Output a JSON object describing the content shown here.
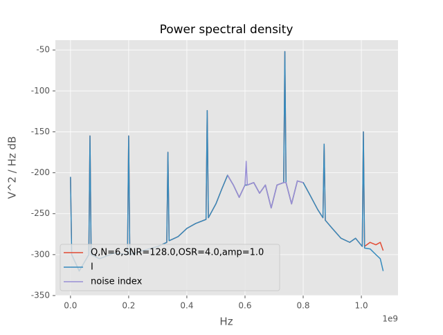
{
  "chart_data": {
    "type": "line",
    "title": "Power spectral density",
    "xlabel": "Hz",
    "ylabel": "V^2 / Hz dB",
    "x_offset_label": "1e9",
    "x": [
      0,
      4000000.0,
      30000000.0,
      63000000.0,
      67000000.0,
      71000000.0,
      100000000.0,
      150000000.0,
      196000000.0,
      200000000.0,
      204000000.0,
      250000000.0,
      300000000.0,
      331000000.0,
      335000000.0,
      339000000.0,
      370000000.0,
      400000000.0,
      430000000.0,
      466000000.0,
      470000000.0,
      474000000.0,
      500000000.0,
      520000000.0,
      540000000.0,
      560000000.0,
      580000000.0,
      600000000.0,
      604000000.0,
      608000000.0,
      630000000.0,
      650000000.0,
      670000000.0,
      690000000.0,
      710000000.0,
      733000000.0,
      737000000.0,
      741000000.0,
      760000000.0,
      780000000.0,
      800000000.0,
      820000000.0,
      850000000.0,
      868000000.0,
      872000000.0,
      876000000.0,
      900000000.0,
      930000000.0,
      960000000.0,
      980000000.0,
      1003000000.0,
      1007000000.0,
      1011000000.0,
      1030000000.0,
      1050000000.0,
      1065000000.0,
      1075000000.0
    ],
    "series": [
      {
        "name": "Q,N=6,SNR=128.0,OSR=4.0,amp=1.0",
        "color": "#E24A33",
        "values": [
          -205,
          -300,
          -320,
          -300,
          -155,
          -300,
          -305,
          -298,
          -300,
          -155,
          -300,
          -295,
          -290,
          -285,
          -175,
          -283,
          -278,
          -268,
          -262,
          -257,
          -124,
          -255,
          -238,
          -220,
          -203,
          -215,
          -230,
          -215,
          -215,
          -215,
          -212,
          -225,
          -215,
          -243,
          -215,
          -212,
          -52,
          -212,
          -238,
          -210,
          -212,
          -225,
          -245,
          -255,
          -165,
          -258,
          -268,
          -280,
          -285,
          -280,
          -290,
          -150,
          -290,
          -285,
          -288,
          -285,
          -295
        ]
      },
      {
        "name": "I",
        "color": "#348ABD",
        "values": [
          -205,
          -300,
          -320,
          -300,
          -155,
          -300,
          -305,
          -298,
          -300,
          -155,
          -300,
          -295,
          -290,
          -285,
          -175,
          -283,
          -278,
          -268,
          -262,
          -257,
          -124,
          -255,
          -238,
          -220,
          -203,
          -215,
          -230,
          -215,
          -215,
          -215,
          -212,
          -225,
          -215,
          -243,
          -215,
          -212,
          -52,
          -212,
          -238,
          -210,
          -212,
          -225,
          -245,
          -255,
          -165,
          -258,
          -268,
          -280,
          -285,
          -280,
          -290,
          -150,
          -292,
          -293,
          -300,
          -305,
          -320
        ]
      },
      {
        "name": "noise index",
        "color": "#988ED5",
        "values": [
          null,
          null,
          null,
          null,
          null,
          null,
          null,
          null,
          null,
          null,
          null,
          null,
          null,
          null,
          null,
          null,
          null,
          null,
          null,
          null,
          null,
          null,
          null,
          null,
          -203,
          -215,
          -230,
          -215,
          -186,
          -215,
          -212,
          -225,
          -215,
          -243,
          -215,
          -212,
          -212,
          -212,
          -238,
          -210,
          -212,
          null,
          null,
          null,
          null,
          null,
          null,
          null,
          null,
          null,
          null,
          null,
          null,
          null,
          null,
          null,
          null
        ]
      }
    ],
    "xlim": [
      -52000000.0,
      1126000000.0
    ],
    "ylim": [
      -350,
      -38
    ],
    "xticks": [
      {
        "value": 0,
        "label": "0.0"
      },
      {
        "value": 200000000.0,
        "label": "0.2"
      },
      {
        "value": 400000000.0,
        "label": "0.4"
      },
      {
        "value": 600000000.0,
        "label": "0.6"
      },
      {
        "value": 800000000.0,
        "label": "0.8"
      },
      {
        "value": 1000000000.0,
        "label": "1.0"
      }
    ],
    "yticks": [
      -350,
      -300,
      -250,
      -200,
      -150,
      -100,
      -50
    ],
    "grid": true,
    "legend": "lower left"
  }
}
